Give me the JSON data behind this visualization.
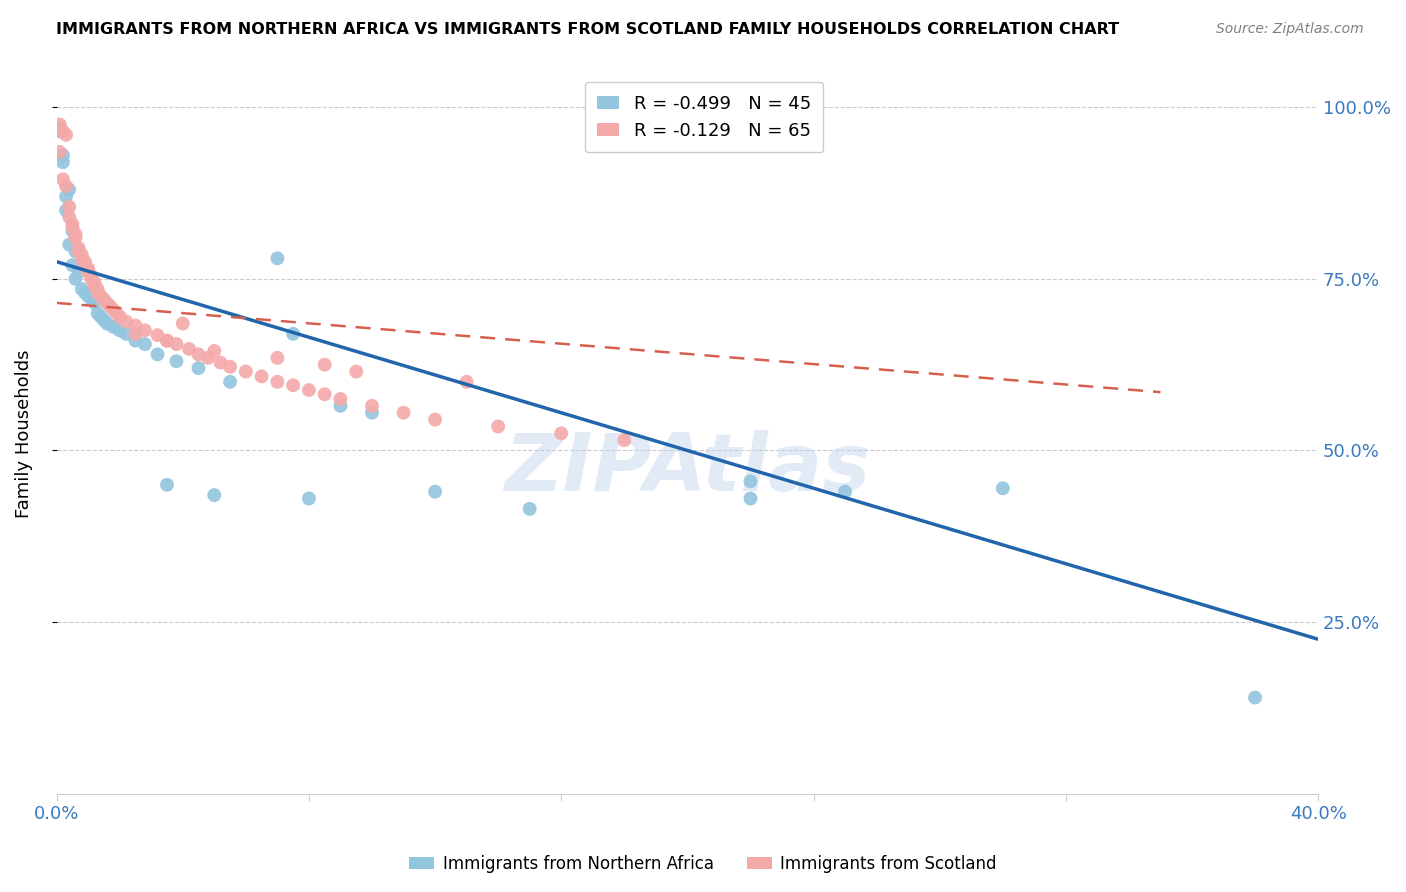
{
  "title": "IMMIGRANTS FROM NORTHERN AFRICA VS IMMIGRANTS FROM SCOTLAND FAMILY HOUSEHOLDS CORRELATION CHART",
  "source": "Source: ZipAtlas.com",
  "ylabel": "Family Households",
  "right_yticks": [
    "100.0%",
    "75.0%",
    "50.0%",
    "25.0%"
  ],
  "right_ytick_vals": [
    1.0,
    0.75,
    0.5,
    0.25
  ],
  "legend_blue": "R = -0.499   N = 45",
  "legend_pink": "R = -0.129   N = 65",
  "blue_color": "#92c5de",
  "pink_color": "#f4a9a9",
  "line_blue": "#2166ac",
  "line_pink": "#d6604d",
  "xlim": [
    0.0,
    0.4
  ],
  "ylim": [
    0.0,
    1.05
  ],
  "blue_trend_x": [
    0.0,
    0.4
  ],
  "blue_trend_y": [
    0.775,
    0.225
  ],
  "pink_trend_x": [
    0.0,
    0.35
  ],
  "pink_trend_y": [
    0.715,
    0.585
  ],
  "blue_scatter_x": [
    0.001,
    0.002,
    0.001,
    0.003,
    0.002,
    0.004,
    0.003,
    0.005,
    0.004,
    0.006,
    0.005,
    0.007,
    0.006,
    0.008,
    0.009,
    0.01,
    0.011,
    0.012,
    0.013,
    0.014,
    0.015,
    0.016,
    0.018,
    0.02,
    0.022,
    0.025,
    0.028,
    0.032,
    0.038,
    0.045,
    0.055,
    0.07,
    0.075,
    0.09,
    0.1,
    0.15,
    0.22,
    0.25,
    0.3,
    0.38,
    0.22,
    0.08,
    0.12,
    0.05,
    0.035
  ],
  "blue_scatter_y": [
    0.965,
    0.93,
    0.97,
    0.87,
    0.92,
    0.88,
    0.85,
    0.82,
    0.8,
    0.79,
    0.77,
    0.76,
    0.75,
    0.735,
    0.73,
    0.725,
    0.72,
    0.715,
    0.7,
    0.695,
    0.69,
    0.685,
    0.68,
    0.675,
    0.67,
    0.66,
    0.655,
    0.64,
    0.63,
    0.62,
    0.6,
    0.78,
    0.67,
    0.565,
    0.555,
    0.415,
    0.43,
    0.44,
    0.445,
    0.14,
    0.455,
    0.43,
    0.44,
    0.435,
    0.45
  ],
  "pink_scatter_x": [
    0.001,
    0.001,
    0.002,
    0.002,
    0.003,
    0.003,
    0.004,
    0.004,
    0.005,
    0.005,
    0.006,
    0.006,
    0.007,
    0.007,
    0.008,
    0.008,
    0.009,
    0.009,
    0.01,
    0.01,
    0.011,
    0.011,
    0.012,
    0.012,
    0.013,
    0.013,
    0.014,
    0.015,
    0.016,
    0.017,
    0.018,
    0.019,
    0.02,
    0.022,
    0.025,
    0.028,
    0.032,
    0.035,
    0.038,
    0.042,
    0.045,
    0.048,
    0.052,
    0.055,
    0.06,
    0.065,
    0.07,
    0.075,
    0.08,
    0.085,
    0.09,
    0.1,
    0.11,
    0.12,
    0.14,
    0.16,
    0.18,
    0.04,
    0.025,
    0.035,
    0.05,
    0.07,
    0.085,
    0.095,
    0.13
  ],
  "pink_scatter_y": [
    0.975,
    0.935,
    0.965,
    0.895,
    0.885,
    0.96,
    0.855,
    0.84,
    0.83,
    0.825,
    0.815,
    0.81,
    0.795,
    0.79,
    0.785,
    0.78,
    0.775,
    0.77,
    0.765,
    0.76,
    0.755,
    0.75,
    0.745,
    0.74,
    0.735,
    0.73,
    0.725,
    0.72,
    0.715,
    0.71,
    0.705,
    0.7,
    0.695,
    0.688,
    0.682,
    0.675,
    0.668,
    0.66,
    0.655,
    0.648,
    0.64,
    0.635,
    0.628,
    0.622,
    0.615,
    0.608,
    0.6,
    0.595,
    0.588,
    0.582,
    0.575,
    0.565,
    0.555,
    0.545,
    0.535,
    0.525,
    0.515,
    0.685,
    0.67,
    0.66,
    0.645,
    0.635,
    0.625,
    0.615,
    0.6
  ],
  "xtick_positions": [
    0.0,
    0.08,
    0.16,
    0.24,
    0.32,
    0.4
  ]
}
